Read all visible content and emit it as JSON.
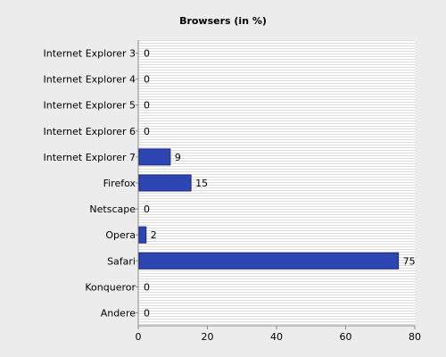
{
  "chart_data": {
    "type": "bar",
    "orientation": "horizontal",
    "title": "Browsers (in %)",
    "categories": [
      "Internet Explorer 3",
      "Internet Explorer 4",
      "Internet Explorer 5",
      "Internet Explorer 6",
      "Internet Explorer 7",
      "Firefox",
      "Netscape",
      "Opera",
      "Safari",
      "Konqueror",
      "Andere"
    ],
    "values": [
      0,
      0,
      0,
      0,
      9,
      15,
      0,
      2,
      75,
      0,
      0
    ],
    "color": "#2e45b4",
    "xlim": [
      0,
      80
    ],
    "xticks": [
      0,
      20,
      40,
      60,
      80
    ]
  }
}
